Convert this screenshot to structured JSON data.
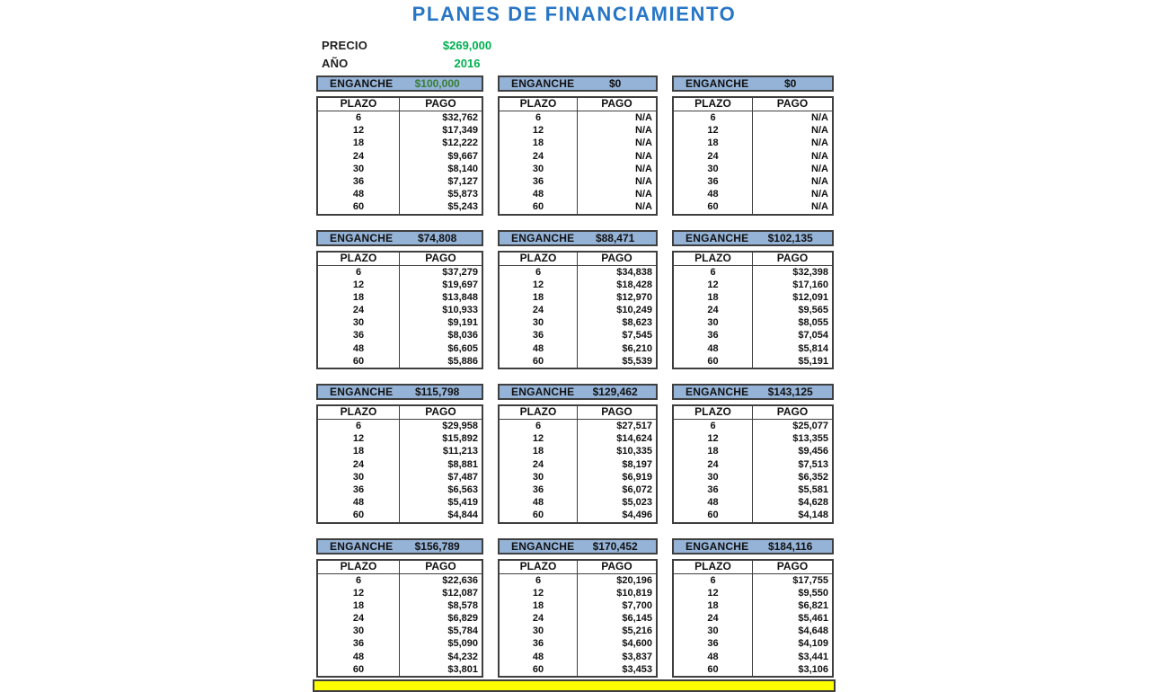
{
  "title": "PLANES DE FINANCIAMIENTO",
  "info": {
    "precio_label": "PRECIO",
    "precio_value": "$269,000",
    "anio_label": "AÑO",
    "anio_value": "2016"
  },
  "headers": {
    "enganche": "ENGANCHE",
    "plazo": "PLAZO",
    "pago": "PAGO"
  },
  "plazos": [
    "6",
    "12",
    "18",
    "24",
    "30",
    "36",
    "48",
    "60"
  ],
  "plans": [
    {
      "enganche": "$100,000",
      "green_value": true,
      "pagos": [
        "$32,762",
        "$17,349",
        "$12,222",
        "$9,667",
        "$8,140",
        "$7,127",
        "$5,873",
        "$5,243"
      ]
    },
    {
      "enganche": "$0",
      "pagos": [
        "N/A",
        "N/A",
        "N/A",
        "N/A",
        "N/A",
        "N/A",
        "N/A",
        "N/A"
      ]
    },
    {
      "enganche": "$0",
      "pagos": [
        "N/A",
        "N/A",
        "N/A",
        "N/A",
        "N/A",
        "N/A",
        "N/A",
        "N/A"
      ]
    },
    {
      "enganche": "$74,808",
      "pagos": [
        "$37,279",
        "$19,697",
        "$13,848",
        "$10,933",
        "$9,191",
        "$8,036",
        "$6,605",
        "$5,886"
      ]
    },
    {
      "enganche": "$88,471",
      "pagos": [
        "$34,838",
        "$18,428",
        "$12,970",
        "$10,249",
        "$8,623",
        "$7,545",
        "$6,210",
        "$5,539"
      ]
    },
    {
      "enganche": "$102,135",
      "pagos": [
        "$32,398",
        "$17,160",
        "$12,091",
        "$9,565",
        "$8,055",
        "$7,054",
        "$5,814",
        "$5,191"
      ]
    },
    {
      "enganche": "$115,798",
      "pagos": [
        "$29,958",
        "$15,892",
        "$11,213",
        "$8,881",
        "$7,487",
        "$6,563",
        "$5,419",
        "$4,844"
      ]
    },
    {
      "enganche": "$129,462",
      "pagos": [
        "$27,517",
        "$14,624",
        "$10,335",
        "$8,197",
        "$6,919",
        "$6,072",
        "$5,023",
        "$4,496"
      ]
    },
    {
      "enganche": "$143,125",
      "pagos": [
        "$25,077",
        "$13,355",
        "$9,456",
        "$7,513",
        "$6,352",
        "$5,581",
        "$4,628",
        "$4,148"
      ]
    },
    {
      "enganche": "$156,789",
      "pagos": [
        "$22,636",
        "$12,087",
        "$8,578",
        "$6,829",
        "$5,784",
        "$5,090",
        "$4,232",
        "$3,801"
      ]
    },
    {
      "enganche": "$170,452",
      "pagos": [
        "$20,196",
        "$10,819",
        "$7,700",
        "$6,145",
        "$5,216",
        "$4,600",
        "$3,837",
        "$3,453"
      ]
    },
    {
      "enganche": "$184,116",
      "pagos": [
        "$17,755",
        "$9,550",
        "$6,821",
        "$5,461",
        "$4,648",
        "$4,109",
        "$3,441",
        "$3,106"
      ]
    }
  ],
  "colors": {
    "title_blue": "#2776C6",
    "header_blue": "#95B3D7",
    "accent_green": "#00B050",
    "dark_green": "#377D37",
    "highlight_yellow": "#FFFF00",
    "border_dark": "#3F3F3F"
  }
}
